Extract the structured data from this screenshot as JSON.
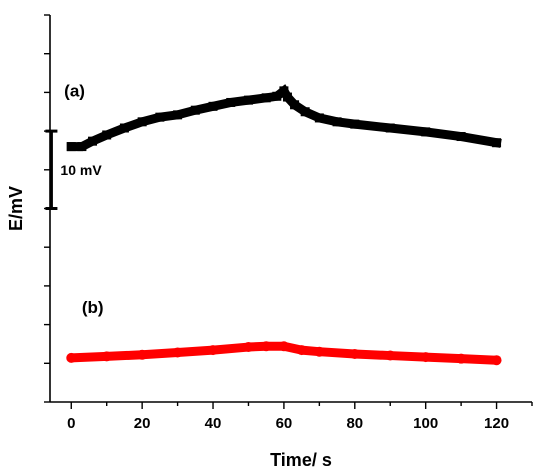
{
  "chart_data": {
    "type": "line",
    "title": "",
    "xlabel": "Time/ s",
    "ylabel": "E/mV",
    "xlim": [
      -6,
      130
    ],
    "ylim": [
      -50,
      0
    ],
    "xticks": [
      0,
      20,
      40,
      60,
      80,
      100,
      120
    ],
    "xtick_labels": [
      "0",
      "20",
      "40",
      "60",
      "80",
      "100",
      "120"
    ],
    "y_minor_ticks": [
      -50,
      -45,
      -40,
      -35,
      -30,
      -25,
      -20,
      -15,
      -10,
      -5,
      0
    ],
    "grid": false,
    "scale_bar": {
      "label": "10 mV",
      "from": -15,
      "to": -25
    },
    "series": [
      {
        "name": "(a)",
        "color": "#000000",
        "marker": "square",
        "x": [
          0,
          3,
          6,
          10,
          15,
          20,
          25,
          30,
          35,
          40,
          45,
          50,
          55,
          58,
          60,
          61,
          63,
          66,
          70,
          75,
          80,
          90,
          100,
          110,
          120
        ],
        "y": [
          -17.0,
          -17.0,
          -16.3,
          -15.5,
          -14.6,
          -13.8,
          -13.2,
          -12.9,
          -12.3,
          -11.8,
          -11.3,
          -11.0,
          -10.7,
          -10.5,
          -9.8,
          -10.6,
          -11.6,
          -12.5,
          -13.3,
          -13.8,
          -14.1,
          -14.6,
          -15.1,
          -15.7,
          -16.5
        ]
      },
      {
        "name": "(b)",
        "color": "#ff0000",
        "marker": "circle",
        "x": [
          0,
          10,
          20,
          30,
          40,
          50,
          55,
          60,
          65,
          70,
          80,
          90,
          100,
          110,
          120
        ],
        "y": [
          -44.3,
          -44.1,
          -43.9,
          -43.6,
          -43.3,
          -42.9,
          -42.8,
          -42.8,
          -43.3,
          -43.5,
          -43.8,
          -44.0,
          -44.2,
          -44.4,
          -44.6
        ]
      }
    ],
    "series_labels": [
      {
        "text": "(a)",
        "x": -2,
        "y": -10.5
      },
      {
        "text": "(b)",
        "x": 3,
        "y": -38.5
      }
    ]
  }
}
